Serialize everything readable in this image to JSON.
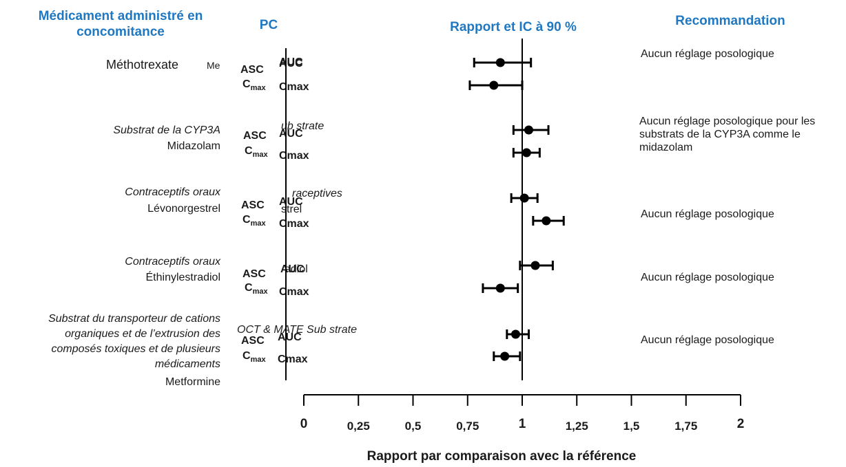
{
  "headers": {
    "drug": "Médicament administré en concomitance",
    "pk": "PC",
    "ratio": "Rapport et IC à 90 %",
    "recommendation": "Recommandation"
  },
  "groups": [
    {
      "name_lines": [
        "Méthotrexate"
      ],
      "overlap": "Me",
      "english_fragment": "AUC",
      "recommendation": "Aucun réglage posologique"
    },
    {
      "name_lines": [
        "Substrat de la CYP3A",
        "Midazolam"
      ],
      "english_fragment": "ub strate",
      "recommendation": "Aucun réglage posologique pour les substrats de la CYP3A comme le midazolam"
    },
    {
      "name_lines": [
        "Contraceptifs oraux",
        "Lévonorgestrel"
      ],
      "english_fragment": "raceptives",
      "english_fragment2": "strel",
      "recommendation": "Aucun réglage posologique"
    },
    {
      "name_lines": [
        "Contraceptifs oraux",
        "Éthinylestradiol"
      ],
      "english_fragment": "adiol",
      "recommendation": "Aucun réglage posologique"
    },
    {
      "name_lines": [
        "Substrat du transporteur de cations",
        "organiques et de l’extrusion des",
        "composés toxiques et de plusieurs",
        "médicaments",
        "Metformine"
      ],
      "english_fragment": "OCT & MATE Sub strate",
      "recommendation": "Aucun réglage posologique"
    }
  ],
  "pk_labels": {
    "asc": "ASC",
    "auc": "AUC",
    "c": "C",
    "max": "max",
    "cmax": "Cmax"
  },
  "chart_data": {
    "type": "scatter",
    "title": "Rapport et IC à 90 %",
    "xlabel": "Rapport par comparaison avec la référence",
    "xlim": [
      0,
      2
    ],
    "xticks": [
      "0",
      "0,25",
      "0,5",
      "0,75",
      "1",
      "1,25",
      "1,5",
      "1,75",
      "2"
    ],
    "reference_line": 1,
    "series": [
      {
        "values": [
          {
            "drug": "Méthotrexate",
            "pk": "ASC",
            "ratio": 0.9,
            "lower": 0.78,
            "upper": 1.04
          },
          {
            "drug": "Méthotrexate",
            "pk": "Cmax",
            "ratio": 0.87,
            "lower": 0.76,
            "upper": 1.0
          },
          {
            "drug": "Midazolam",
            "pk": "ASC",
            "ratio": 1.03,
            "lower": 0.96,
            "upper": 1.12
          },
          {
            "drug": "Midazolam",
            "pk": "Cmax",
            "ratio": 1.02,
            "lower": 0.96,
            "upper": 1.08
          },
          {
            "drug": "Lévonorgestrel",
            "pk": "ASC",
            "ratio": 1.01,
            "lower": 0.95,
            "upper": 1.07
          },
          {
            "drug": "Lévonorgestrel",
            "pk": "Cmax",
            "ratio": 1.11,
            "lower": 1.05,
            "upper": 1.19
          },
          {
            "drug": "Éthinylestradiol",
            "pk": "ASC",
            "ratio": 1.06,
            "lower": 0.99,
            "upper": 1.14
          },
          {
            "drug": "Éthinylestradiol",
            "pk": "Cmax",
            "ratio": 0.9,
            "lower": 0.82,
            "upper": 0.98
          },
          {
            "drug": "Metformine",
            "pk": "ASC",
            "ratio": 0.97,
            "lower": 0.93,
            "upper": 1.03
          },
          {
            "drug": "Metformine",
            "pk": "Cmax",
            "ratio": 0.92,
            "lower": 0.87,
            "upper": 0.99
          }
        ]
      }
    ]
  }
}
